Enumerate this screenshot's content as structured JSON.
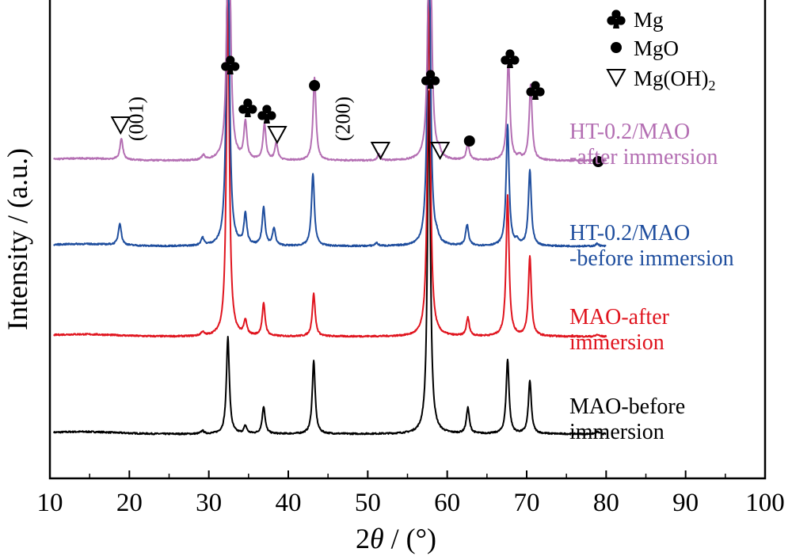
{
  "chart_data": {
    "type": "line",
    "title": "",
    "xlabel_prefix": "2",
    "xlabel_symbol": "θ",
    "xlabel_suffix": " / (°)",
    "ylabel": "Intensity / (a.u.)",
    "xlim": [
      10,
      100
    ],
    "xticks": [
      10,
      20,
      30,
      40,
      50,
      60,
      70,
      80,
      90,
      100
    ],
    "yticks_shown": false,
    "grid": false,
    "legend_position": "top-right",
    "legend": [
      {
        "symbol": "♣",
        "shape": "club",
        "label": "Mg"
      },
      {
        "symbol": "●",
        "shape": "dot",
        "label": "MgO"
      },
      {
        "symbol": "▽",
        "shape": "triangle",
        "label": "Mg(OH)",
        "sub": "2"
      }
    ],
    "series": [
      {
        "name": "MAO-before immersion",
        "label_lines": [
          "MAO-before",
          "immersion"
        ],
        "color": "#000000",
        "baseline": 0.0,
        "peaks": [
          [
            29.2,
            0.08
          ],
          [
            32.4,
            2.55
          ],
          [
            34.6,
            0.2
          ],
          [
            36.9,
            0.72
          ],
          [
            43.2,
            1.92
          ],
          [
            57.7,
            9.0
          ],
          [
            62.6,
            0.68
          ],
          [
            67.6,
            1.95
          ],
          [
            70.4,
            1.4
          ],
          [
            78.9,
            0.06
          ]
        ]
      },
      {
        "name": "MAO-after immersion",
        "label_lines": [
          "MAO-after",
          "immersion"
        ],
        "color": "#e0141e",
        "baseline": 0.0,
        "peaks": [
          [
            29.2,
            0.1
          ],
          [
            32.4,
            9.0
          ],
          [
            34.6,
            0.38
          ],
          [
            36.9,
            0.85
          ],
          [
            43.2,
            1.12
          ],
          [
            57.7,
            9.0
          ],
          [
            62.6,
            0.48
          ],
          [
            67.6,
            3.7
          ],
          [
            70.4,
            2.1
          ],
          [
            78.9,
            0.05
          ]
        ]
      },
      {
        "name": "HT-0.2/MAO -before immersion",
        "label_lines": [
          "HT-0.2/MAO",
          "-before immersion"
        ],
        "color": "#1f4e9e",
        "baseline": 0.0,
        "peaks": [
          [
            18.8,
            0.58
          ],
          [
            29.2,
            0.2
          ],
          [
            32.4,
            9.0
          ],
          [
            34.6,
            0.8
          ],
          [
            36.9,
            1.0
          ],
          [
            38.2,
            0.45
          ],
          [
            43.1,
            1.9
          ],
          [
            51.1,
            0.08
          ],
          [
            57.7,
            9.0
          ],
          [
            58.7,
            0.12
          ],
          [
            62.5,
            0.55
          ],
          [
            67.6,
            3.2
          ],
          [
            68.8,
            0.12
          ],
          [
            70.4,
            2.0
          ],
          [
            78.9,
            0.07
          ]
        ]
      },
      {
        "name": "HT-0.2/MAO -after immersion",
        "label_lines": [
          "HT-0.2/MAO",
          "-after immersion"
        ],
        "color": "#b46fb3",
        "baseline": 0.0,
        "peaks": [
          [
            19.0,
            0.55
          ],
          [
            29.3,
            0.12
          ],
          [
            32.5,
            9.0
          ],
          [
            34.6,
            1.0
          ],
          [
            37.0,
            0.95
          ],
          [
            38.5,
            0.45
          ],
          [
            43.3,
            2.2
          ],
          [
            51.4,
            0.16
          ],
          [
            57.8,
            9.0
          ],
          [
            59.0,
            0.15
          ],
          [
            62.6,
            0.45
          ],
          [
            67.7,
            2.7
          ],
          [
            69.1,
            0.1
          ],
          [
            70.5,
            2.0
          ],
          [
            78.9,
            0.12
          ]
        ]
      }
    ],
    "markers": [
      {
        "shape": "triangle",
        "x": 18.9,
        "label": ""
      },
      {
        "shape": "club",
        "x": 32.7,
        "label": ""
      },
      {
        "shape": "club",
        "x": 34.9,
        "label": ""
      },
      {
        "shape": "club",
        "x": 37.3,
        "label": ""
      },
      {
        "shape": "triangle",
        "x": 38.6,
        "label": ""
      },
      {
        "shape": "dot",
        "x": 43.3,
        "label": ""
      },
      {
        "shape": "triangle",
        "x": 51.6,
        "label": ""
      },
      {
        "shape": "club",
        "x": 57.9,
        "label": ""
      },
      {
        "shape": "triangle",
        "x": 59.1,
        "label": ""
      },
      {
        "shape": "dot",
        "x": 62.8,
        "label": ""
      },
      {
        "shape": "club",
        "x": 67.9,
        "label": ""
      },
      {
        "shape": "club",
        "x": 71.1,
        "label": ""
      },
      {
        "shape": "dot",
        "x": 79.0,
        "label": ""
      }
    ],
    "plane_labels": [
      {
        "x": 21.7,
        "text": "(001)"
      },
      {
        "x": 47.7,
        "text": "(200)"
      }
    ]
  }
}
